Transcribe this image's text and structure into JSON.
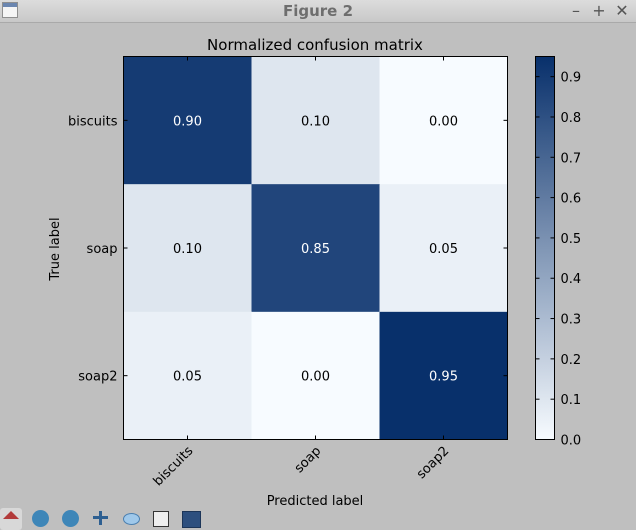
{
  "window": {
    "title": "Figure 2",
    "buttons": {
      "minimize": "–",
      "maximize": "+",
      "close": "✕"
    }
  },
  "toolbar": {
    "icons": [
      "home-icon",
      "back-icon",
      "forward-icon",
      "pan-icon",
      "zoom-icon",
      "subplots-icon",
      "save-icon"
    ]
  },
  "colors": {
    "figure_bg": "#bfbfbf",
    "cmap_min": "#f7fbff",
    "cmap_max": "#08306b"
  },
  "chart_data": {
    "type": "heatmap",
    "title": "Normalized confusion matrix",
    "xlabel": "Predicted label",
    "ylabel": "True label",
    "x_categories": [
      "biscuits",
      "soap",
      "soap2"
    ],
    "y_categories": [
      "biscuits",
      "soap",
      "soap2"
    ],
    "values": [
      [
        0.9,
        0.1,
        0.0
      ],
      [
        0.1,
        0.85,
        0.05
      ],
      [
        0.05,
        0.0,
        0.95
      ]
    ],
    "cell_labels": [
      [
        "0.90",
        "0.10",
        "0.00"
      ],
      [
        "0.10",
        "0.85",
        "0.05"
      ],
      [
        "0.05",
        "0.00",
        "0.95"
      ]
    ],
    "colorbar": {
      "ticks": [
        0.0,
        0.1,
        0.2,
        0.3,
        0.4,
        0.5,
        0.6,
        0.7,
        0.8,
        0.9
      ],
      "tick_labels": [
        "0.0",
        "0.1",
        "0.2",
        "0.3",
        "0.4",
        "0.5",
        "0.6",
        "0.7",
        "0.8",
        "0.9"
      ],
      "range": [
        0.0,
        0.95
      ]
    },
    "colormap": "Blues",
    "grid": false
  }
}
